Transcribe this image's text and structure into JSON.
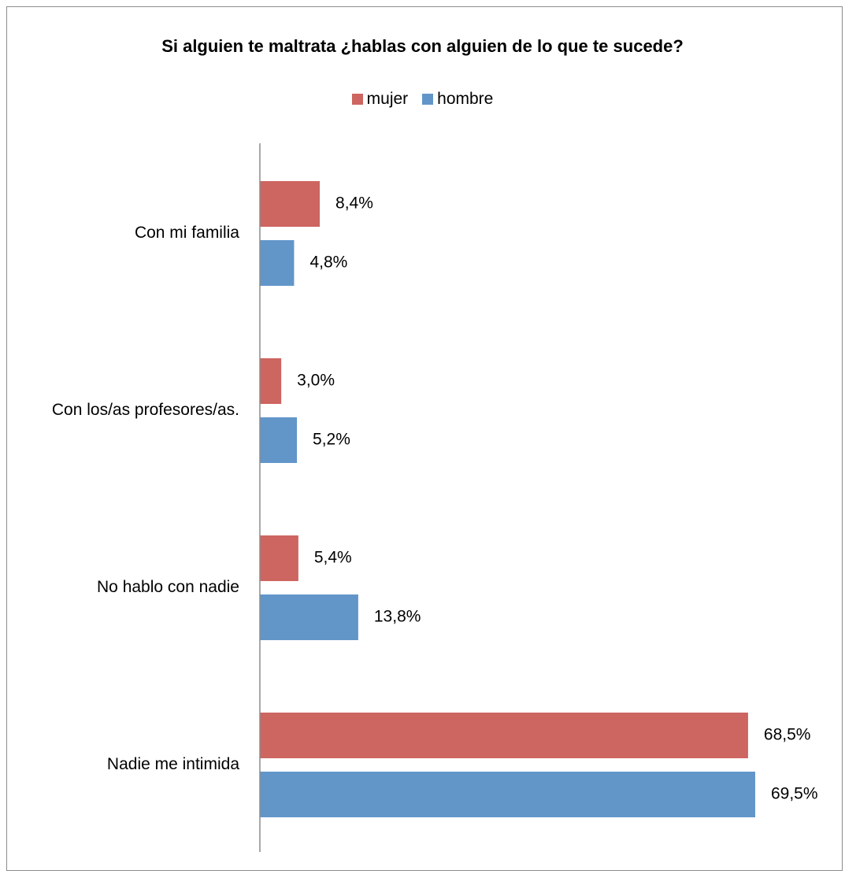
{
  "chart_data": {
    "type": "bar",
    "orientation": "horizontal",
    "title": "Si alguien te maltrata ¿hablas con alguien de lo que te sucede?",
    "categories": [
      "Con mi familia",
      "Con los/as profesores/as.",
      "No hablo con nadie",
      "Nadie me intimida"
    ],
    "series": [
      {
        "name": "mujer",
        "color": "#cd6560",
        "values": [
          8.4,
          3.0,
          5.4,
          68.5
        ],
        "labels": [
          "8,4%",
          "3,0%",
          "5,4%",
          "68,5%"
        ]
      },
      {
        "name": "hombre",
        "color": "#6296c9",
        "values": [
          4.8,
          5.2,
          13.8,
          69.5
        ],
        "labels": [
          "4,8%",
          "5,2%",
          "13,8%",
          "69,5%"
        ]
      }
    ],
    "legend_position": "top",
    "grid": false
  }
}
